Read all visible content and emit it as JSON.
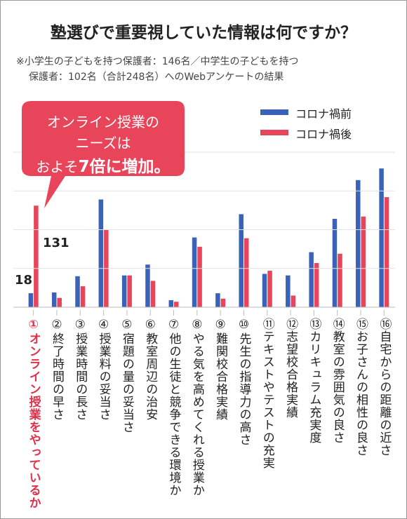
{
  "chart_data": {
    "type": "bar",
    "title": "塾選びで重要視していた情報は何ですか？",
    "subtitle": [
      "※小学生の子どもを持つ保護者：146名／中学生の子どもを持つ",
      "保護者：102名（合計248名）へのWebアンケートの結果"
    ],
    "annotation": {
      "lines": [
        "オンライン授業の",
        "ニーズは"
      ],
      "prefix": "およそ",
      "emphasis": "7倍に増加。"
    },
    "categories": [
      "①オンライン授業をやっているか",
      "②終了時間の早さ",
      "③授業時間の長さ",
      "④授業料の妥当さ",
      "⑤宿題の量の妥当さ",
      "⑥教室周辺の治安",
      "⑦他の生徒と競争できる環境か",
      "⑧やる気を高めてくれる授業か",
      "⑨難関校合格実績",
      "⑩先生の指導力の高さ",
      "⑪テキストやテストの充実",
      "⑫志望校合格実績",
      "⑬カリキュラム充実度",
      "⑭教室の雰囲気の良さ",
      "⑮お子さんの相性の良さ",
      "⑯自宅からの距離の近さ"
    ],
    "series": [
      {
        "name": "コロナ禍前",
        "color": "#3a62b8",
        "values": [
          18,
          19,
          40,
          139,
          41,
          55,
          9,
          90,
          18,
          120,
          43,
          41,
          71,
          114,
          164,
          179
        ]
      },
      {
        "name": "コロナ禍後",
        "color": "#e8445a",
        "values": [
          131,
          12,
          27,
          100,
          41,
          34,
          7,
          78,
          11,
          89,
          47,
          15,
          57,
          69,
          117,
          142
        ]
      }
    ],
    "ylim": [
      0,
      200
    ],
    "yticks": [
      50,
      100,
      150,
      200
    ],
    "grid": true
  }
}
